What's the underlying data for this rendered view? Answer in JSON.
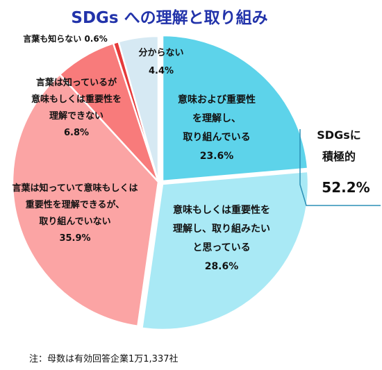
{
  "chart_data": {
    "type": "pie",
    "title": "SDGs への理解と取り組み",
    "slices": [
      {
        "label": [
          "意味および重要性",
          "を理解し、",
          "取り組んでいる"
        ],
        "value": 23.6,
        "value_text": "23.6%",
        "color": "#5dd3ea"
      },
      {
        "label": [
          "意味もしくは重要性を",
          "理解し、取り組みたい",
          "と思っている"
        ],
        "value": 28.6,
        "value_text": "28.6%",
        "color": "#a9e9f5"
      },
      {
        "label": [
          "言葉は知っていて意味もしくは",
          "重要性を理解できるが、",
          "取り組んでいない"
        ],
        "value": 35.9,
        "value_text": "35.9%",
        "color": "#fba4a4"
      },
      {
        "label": [
          "言葉は知っているが",
          "意味もしくは重要性を",
          "理解できない"
        ],
        "value": 6.8,
        "value_text": "6.8%",
        "color": "#f87b7b"
      },
      {
        "label": [
          "言葉も知らない"
        ],
        "value": 0.6,
        "value_text": "0.6%",
        "color": "#e53a3a"
      },
      {
        "label": [
          "分からない"
        ],
        "value": 4.4,
        "value_text": "4.4%",
        "color": "#d6e9f3"
      }
    ],
    "callout": {
      "label_lines": [
        "SDGsに",
        "積極的"
      ],
      "value": "52.2%"
    },
    "note": "注：母数は有効回答企業1万1,337社"
  }
}
